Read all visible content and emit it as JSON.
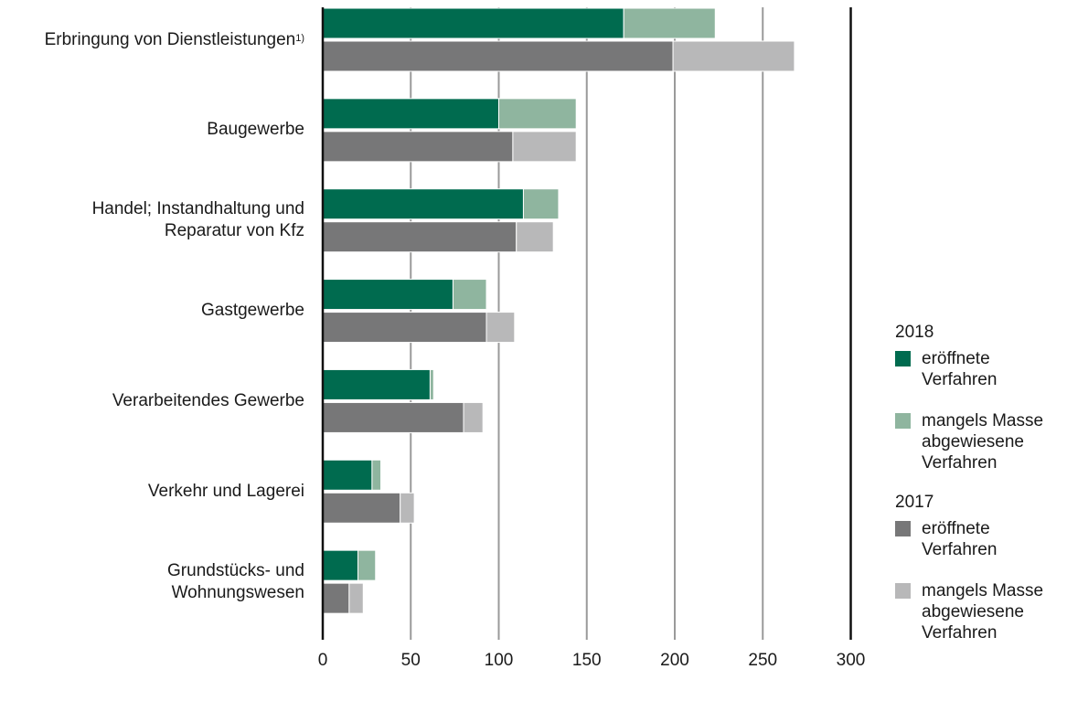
{
  "chart_data": {
    "type": "bar",
    "orientation": "horizontal",
    "stacked": true,
    "categories": [
      "Erbringung von Dienstleistungen",
      "Baugewerbe",
      "Handel; Instandhaltung und\nReparatur von Kfz",
      "Gastgewerbe",
      "Verarbeitendes Gewerbe",
      "Verkehr und Lagerei",
      "Grundstücks- und\nWohnungswesen"
    ],
    "category_footnote": "1)",
    "groups": [
      {
        "name": "2018",
        "series": [
          {
            "name": "eröffnete\nVerfahren",
            "color": "#006b4f",
            "values": [
              171,
              100,
              114,
              74,
              61,
              28,
              20
            ]
          },
          {
            "name": "mangels Masse\nabgewiesene\nVerfahren",
            "color": "#8fb59f",
            "values": [
              52,
              44,
              20,
              19,
              2,
              5,
              10
            ]
          }
        ]
      },
      {
        "name": "2017",
        "series": [
          {
            "name": "eröffnete\nVerfahren",
            "color": "#777778",
            "values": [
              199,
              108,
              110,
              93,
              80,
              44,
              15
            ]
          },
          {
            "name": "mangels Masse\nabgewiesene\nVerfahren",
            "color": "#b8b8b9",
            "values": [
              69,
              36,
              21,
              16,
              11,
              8,
              8
            ]
          }
        ]
      }
    ],
    "xlim": [
      0,
      300
    ],
    "xticks": [
      "0",
      "50",
      "100",
      "150",
      "200",
      "250",
      "300"
    ],
    "grid": true,
    "legend_position": "right"
  }
}
